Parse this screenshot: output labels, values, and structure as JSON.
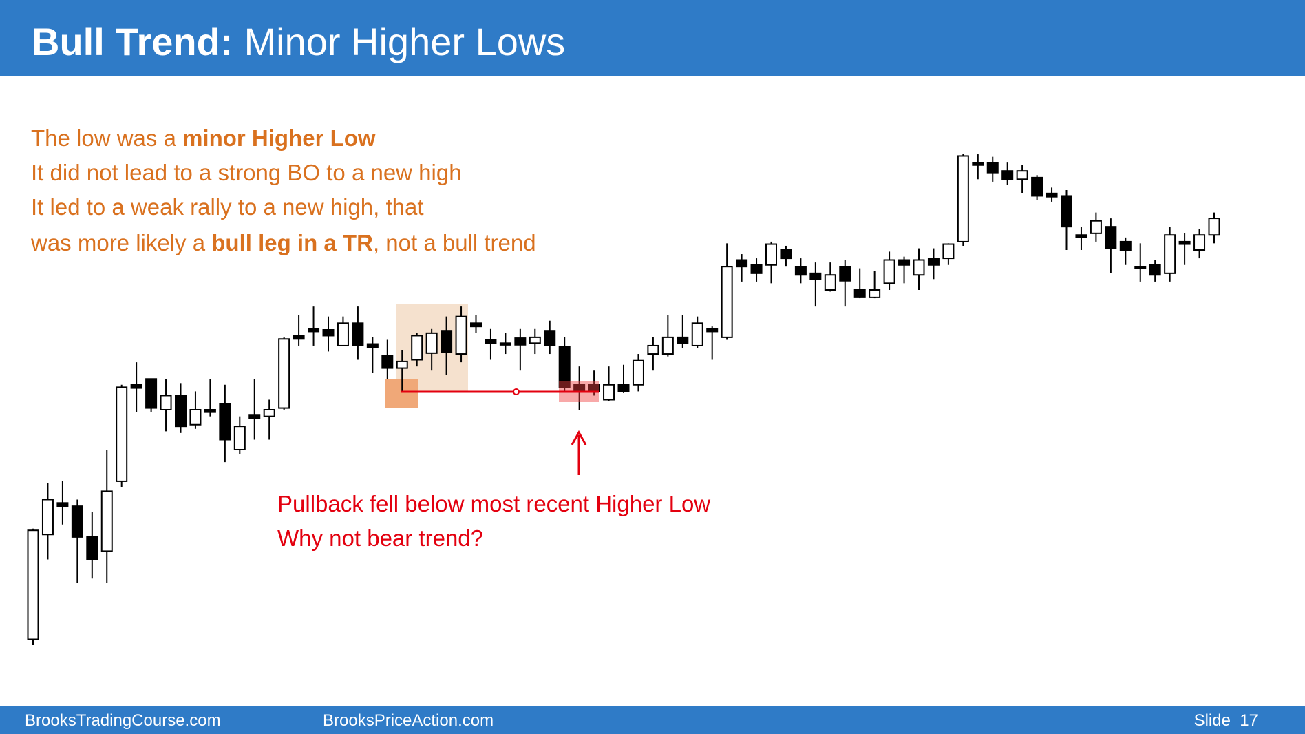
{
  "header": {
    "title_bold": "Bull Trend:",
    "title_rest": "Minor Higher Lows"
  },
  "notes": [
    [
      "The low was a ",
      "minor Higher Low"
    ],
    [
      "It did not lead to a strong BO to a new high"
    ],
    [
      "It led to a weak rally to a new high, that"
    ],
    [
      "was more likely a ",
      "bull leg in a TR",
      ", not a bull trend"
    ]
  ],
  "callout": [
    "Pullback fell below most recent Higher Low",
    "Why not bear trend?"
  ],
  "footer": {
    "left": "BrooksTradingCourse.com",
    "middle": "BrooksPriceAction.com",
    "right": "Slide  17"
  },
  "chart_data": {
    "type": "candlestick",
    "ylim": [
      20,
      620
    ],
    "up_color": "#ffffff",
    "down_color": "#000000",
    "open": [
      32,
      158,
      196,
      192,
      155,
      138,
      222,
      338,
      345,
      308,
      325,
      290,
      308,
      315,
      260,
      302,
      300,
      310,
      397,
      405,
      404,
      385,
      412,
      387,
      373,
      358,
      368,
      376,
      403,
      375,
      412,
      392,
      388,
      394,
      388,
      403,
      384,
      338,
      338,
      320,
      338,
      338,
      375,
      375,
      395,
      385,
      405,
      395,
      488,
      482,
      482,
      500,
      480,
      472,
      452,
      480,
      452,
      443,
      460,
      488,
      470,
      490,
      490,
      510,
      605,
      605,
      595,
      585,
      587,
      568,
      565,
      518,
      520,
      528,
      510,
      480,
      482,
      472,
      510,
      500,
      518
    ],
    "high": [
      165,
      220,
      222,
      200,
      185,
      260,
      338,
      365,
      345,
      345,
      340,
      330,
      345,
      338,
      300,
      345,
      320,
      395,
      422,
      432,
      420,
      420,
      432,
      395,
      392,
      380,
      400,
      405,
      420,
      432,
      422,
      405,
      400,
      405,
      405,
      415,
      395,
      360,
      355,
      360,
      362,
      375,
      395,
      422,
      422,
      420,
      408,
      508,
      495,
      490,
      510,
      505,
      490,
      485,
      485,
      488,
      478,
      475,
      498,
      492,
      502,
      502,
      508,
      615,
      615,
      612,
      605,
      602,
      590,
      575,
      572,
      528,
      545,
      538,
      515,
      508,
      488,
      528,
      520,
      525,
      545
    ],
    "low": [
      25,
      128,
      170,
      100,
      105,
      100,
      215,
      305,
      305,
      282,
      280,
      285,
      300,
      245,
      255,
      272,
      272,
      308,
      385,
      385,
      378,
      385,
      368,
      352,
      345,
      330,
      360,
      355,
      350,
      365,
      400,
      368,
      375,
      355,
      375,
      375,
      330,
      308,
      325,
      318,
      328,
      330,
      355,
      372,
      382,
      382,
      368,
      392,
      462,
      462,
      460,
      480,
      460,
      432,
      450,
      432,
      442,
      442,
      452,
      460,
      452,
      465,
      482,
      505,
      585,
      582,
      578,
      568,
      560,
      558,
      500,
      500,
      510,
      472,
      482,
      462,
      462,
      462,
      482,
      490,
      508
    ],
    "close": [
      163,
      200,
      192,
      155,
      128,
      210,
      335,
      334,
      310,
      325,
      288,
      308,
      305,
      272,
      288,
      298,
      308,
      393,
      393,
      402,
      397,
      412,
      385,
      383,
      358,
      366,
      397,
      400,
      377,
      420,
      408,
      388,
      386,
      386,
      395,
      385,
      335,
      330,
      330,
      338,
      330,
      367,
      385,
      395,
      388,
      412,
      402,
      480,
      480,
      472,
      507,
      490,
      470,
      465,
      470,
      463,
      443,
      452,
      488,
      482,
      488,
      482,
      507,
      613,
      602,
      593,
      585,
      595,
      565,
      564,
      528,
      515,
      535,
      502,
      500,
      478,
      470,
      518,
      507,
      518,
      538
    ]
  }
}
